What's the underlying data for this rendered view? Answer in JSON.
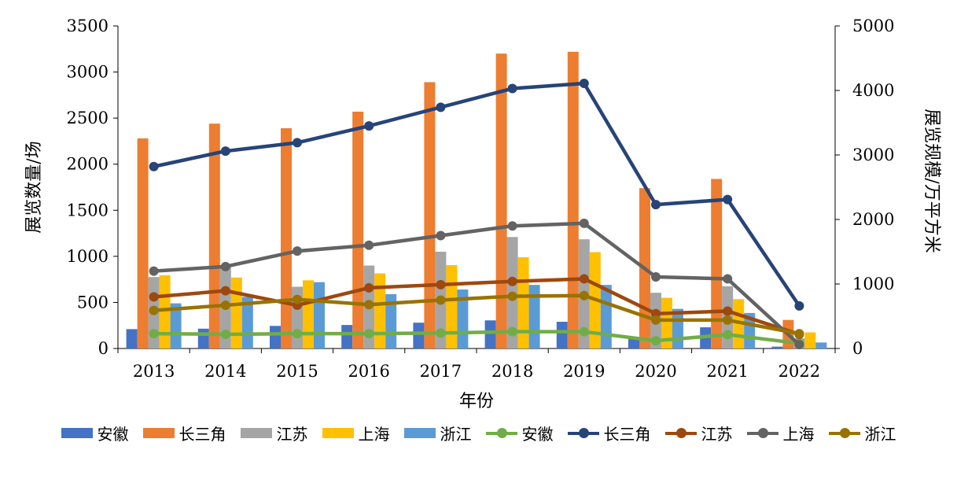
{
  "chart_data": {
    "type": "bar+line",
    "categories": [
      "2013",
      "2014",
      "2015",
      "2016",
      "2017",
      "2018",
      "2019",
      "2020",
      "2021",
      "2022"
    ],
    "xlabel": "年份",
    "ylabel_left": "展览数量/场",
    "ylabel_right": "展览规模/万平方米",
    "ylim_left": [
      0,
      3500
    ],
    "ylim_right": [
      0,
      5000
    ],
    "yticks_left": [
      "0",
      "500",
      "1000",
      "1500",
      "2000",
      "2500",
      "3000",
      "3500"
    ],
    "yticks_right": [
      "0",
      "1000",
      "2000",
      "3000",
      "4000",
      "5000"
    ],
    "bar_series": [
      {
        "name": "安徽",
        "color": "#4472C4",
        "values": [
          210,
          215,
          245,
          255,
          280,
          305,
          290,
          110,
          230,
          20
        ]
      },
      {
        "name": "长三角",
        "color": "#ED7D31",
        "values": [
          2280,
          2440,
          2390,
          2570,
          2890,
          3200,
          3220,
          1740,
          1840,
          310
        ]
      },
      {
        "name": "江苏",
        "color": "#A5A5A5",
        "values": [
          775,
          905,
          670,
          900,
          1050,
          1210,
          1185,
          605,
          675,
          110
        ]
      },
      {
        "name": "上海",
        "color": "#FFC000",
        "values": [
          795,
          770,
          740,
          815,
          905,
          990,
          1045,
          550,
          535,
          175
        ]
      },
      {
        "name": "浙江",
        "color": "#5B9BD5",
        "values": [
          490,
          560,
          720,
          590,
          640,
          690,
          690,
          430,
          385,
          65
        ]
      }
    ],
    "line_series": [
      {
        "name": "安徽",
        "color": "#70AD47",
        "values": [
          230,
          220,
          230,
          230,
          240,
          260,
          260,
          120,
          215,
          80
        ]
      },
      {
        "name": "长三角",
        "color": "#264478",
        "values": [
          2820,
          3060,
          3190,
          3450,
          3740,
          4030,
          4110,
          2230,
          2310,
          660
        ]
      },
      {
        "name": "江苏",
        "color": "#9E480E",
        "values": [
          800,
          895,
          670,
          940,
          990,
          1040,
          1080,
          540,
          580,
          220
        ]
      },
      {
        "name": "上海",
        "color": "#636363",
        "values": [
          1200,
          1270,
          1510,
          1600,
          1750,
          1900,
          1940,
          1110,
          1080,
          60
        ]
      },
      {
        "name": "浙江",
        "color": "#997300",
        "values": [
          590,
          670,
          760,
          680,
          750,
          810,
          820,
          440,
          440,
          230
        ]
      }
    ],
    "legend_position": "bottom",
    "grid": false
  }
}
